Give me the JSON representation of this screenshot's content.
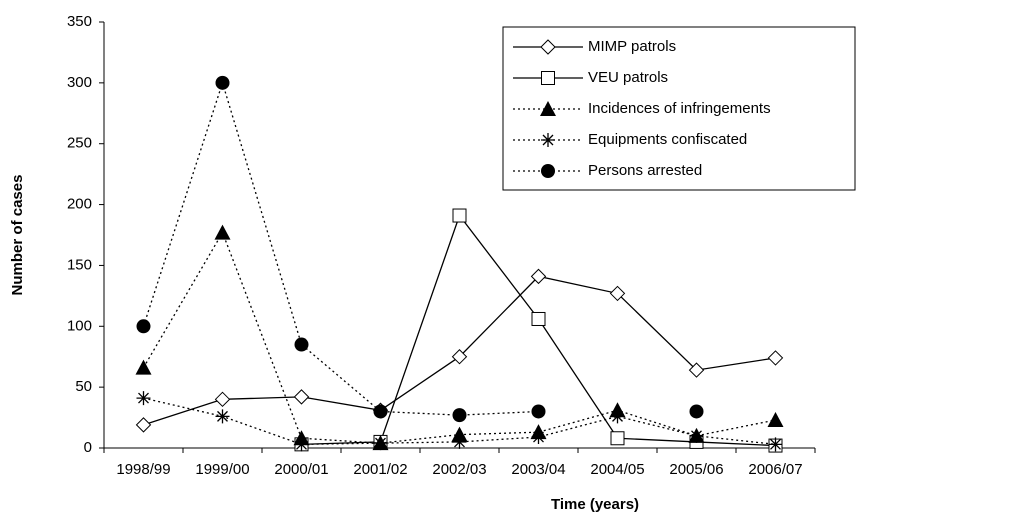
{
  "chart_data": {
    "type": "line",
    "x_label": "Time (years)",
    "y_label": "Number of cases",
    "categories": [
      "1998/99",
      "1999/00",
      "2000/01",
      "2001/02",
      "2002/03",
      "2003/04",
      "2004/05",
      "2005/06",
      "2006/07"
    ],
    "series": [
      {
        "name": "MIMP patrols",
        "color": "#000000",
        "marker": "diamond",
        "dash": "solid",
        "values": [
          19,
          40,
          42,
          31,
          75,
          141,
          127,
          64,
          74
        ]
      },
      {
        "name": "VEU patrols",
        "color": "#000000",
        "marker": "square",
        "dash": "solid",
        "values": [
          null,
          null,
          3,
          5,
          191,
          106,
          8,
          5,
          2
        ]
      },
      {
        "name": "Incidences of infringements",
        "color": "#000000",
        "marker": "triangle",
        "dash": "dotted",
        "values": [
          66,
          177,
          8,
          4,
          11,
          13,
          31,
          10,
          23
        ]
      },
      {
        "name": "Equipments confiscated",
        "color": "#000000",
        "marker": "asterisk",
        "dash": "dotted",
        "values": [
          41,
          26,
          3,
          4,
          5,
          9,
          26,
          10,
          3
        ]
      },
      {
        "name": "Persons arrested",
        "color": "#000000",
        "marker": "circle",
        "dash": "dotted",
        "values": [
          100,
          300,
          85,
          30,
          27,
          30,
          null,
          30,
          null
        ]
      }
    ],
    "ylim": [
      0,
      350
    ],
    "yticks": [
      0,
      50,
      100,
      150,
      200,
      250,
      300,
      350
    ],
    "legend": "upper right"
  }
}
